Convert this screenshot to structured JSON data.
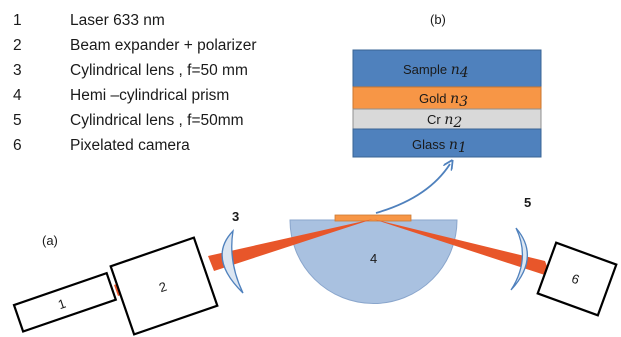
{
  "legend": [
    {
      "num": "1",
      "text": "Laser 633 nm"
    },
    {
      "num": "2",
      "text": "Beam expander + polarizer"
    },
    {
      "num": "3",
      "text": "Cylindrical lens ,  f=50 mm"
    },
    {
      "num": "4",
      "text": "Hemi –cylindrical  prism"
    },
    {
      "num": "5",
      "text": "Cylindrical lens ,  f=50mm"
    },
    {
      "num": "6",
      "text": "Pixelated camera"
    }
  ],
  "panel_labels": {
    "a": "(a)",
    "b": "(b)"
  },
  "layers": [
    {
      "name": "Sample",
      "symbol": "n",
      "index": "4",
      "color": "#4f81bd"
    },
    {
      "name": "Gold",
      "symbol": "n",
      "index": "3",
      "color": "#f79646"
    },
    {
      "name": "Cr",
      "symbol": "n",
      "index": "2",
      "color": "#d9d9d9"
    },
    {
      "name": "Glass",
      "symbol": "n",
      "index": "1",
      "color": "#4f81bd"
    }
  ],
  "components": {
    "laser": "1",
    "expander": "2",
    "lens_in": "3",
    "prism": "4",
    "lens_out": "5",
    "camera": "6"
  },
  "colors": {
    "beam": "#e8562a",
    "prism": "#a9c1e0",
    "gold_film": "#f79646",
    "lens": "#dce6f2",
    "arrow": "#4f81bd"
  }
}
